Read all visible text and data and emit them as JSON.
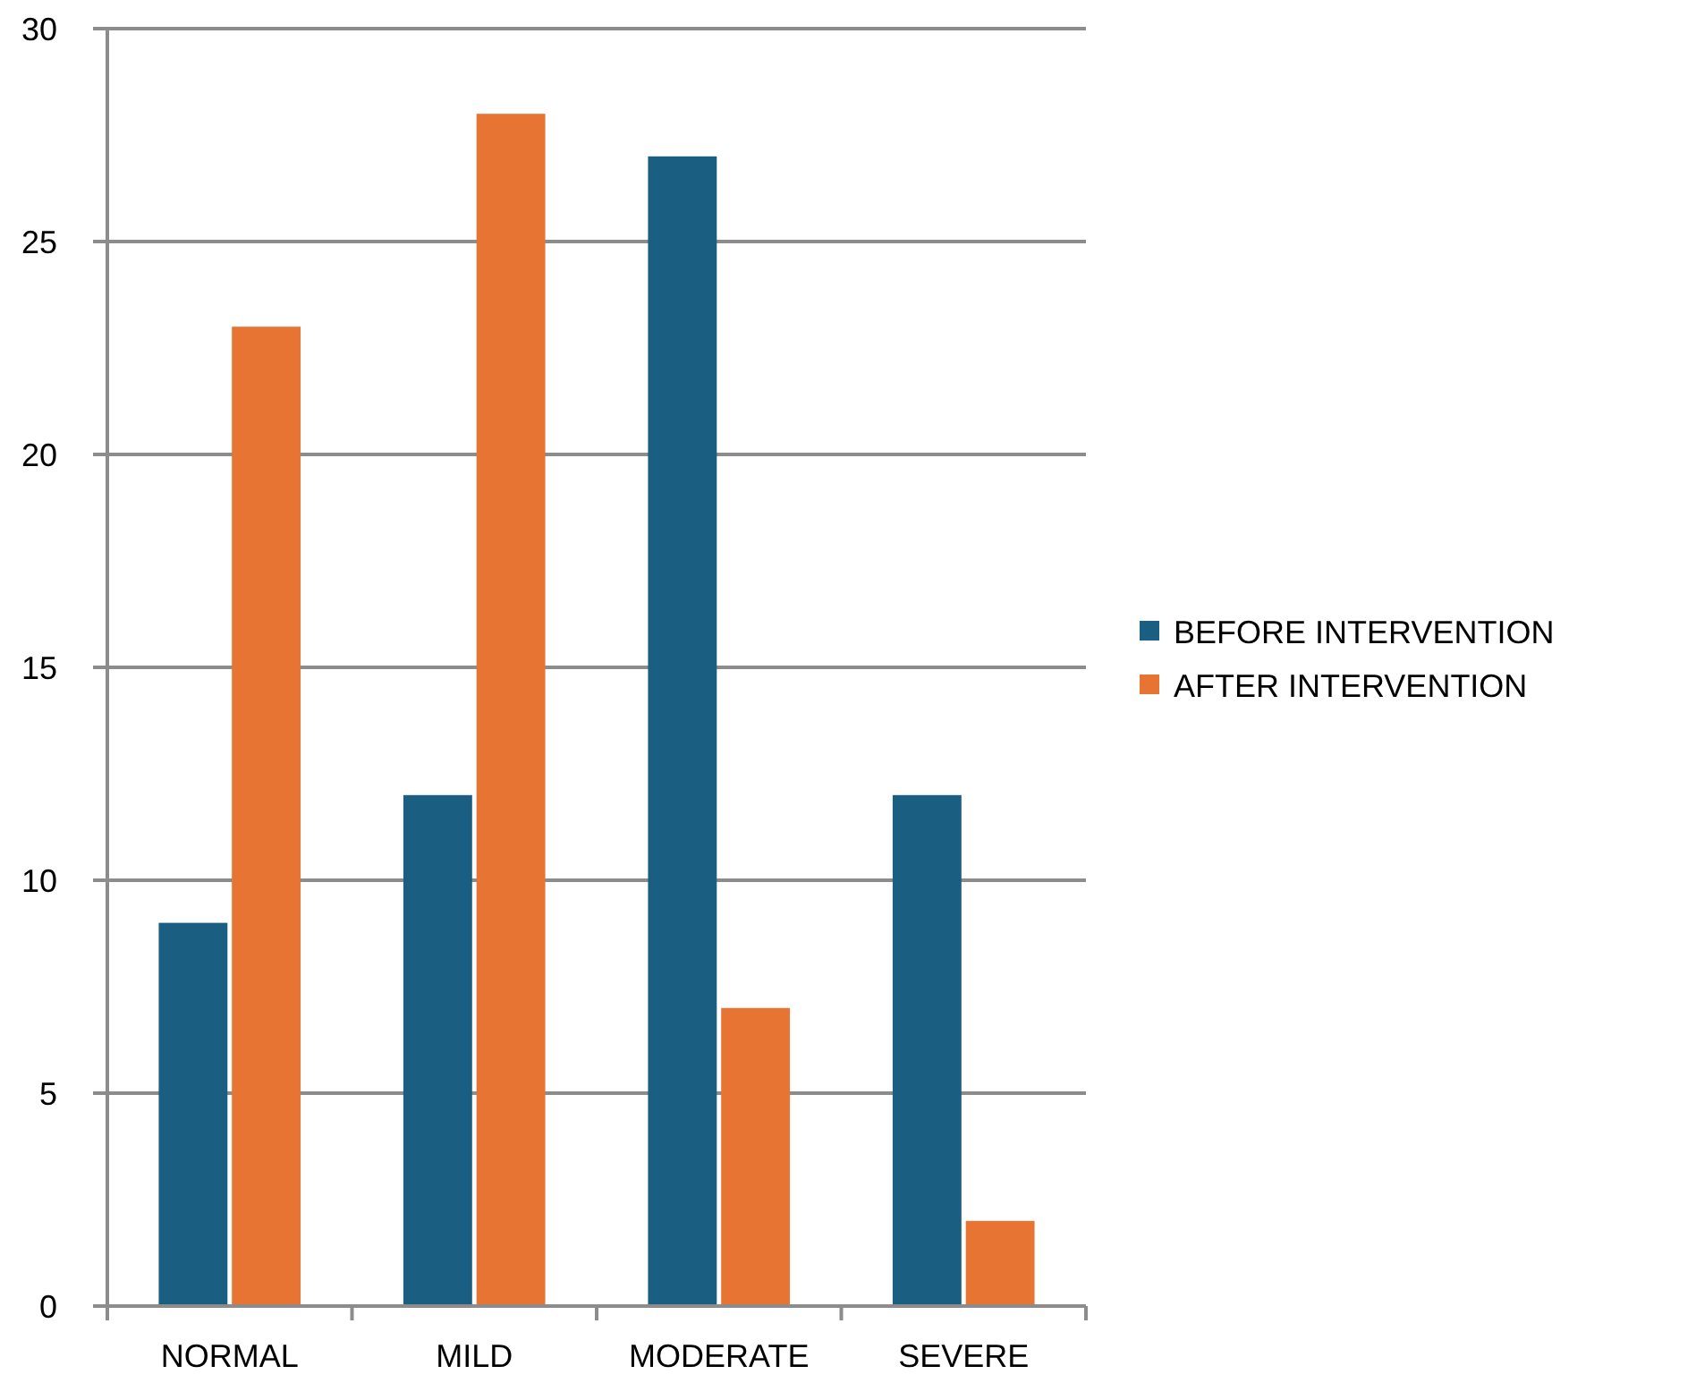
{
  "chart_data": {
    "type": "bar",
    "categories": [
      "NORMAL",
      "MILD",
      "MODERATE",
      "SEVERE"
    ],
    "series": [
      {
        "name": "BEFORE INTERVENTION",
        "color": "#1a5f82",
        "values": [
          9,
          12,
          27,
          12
        ]
      },
      {
        "name": "AFTER INTERVENTION",
        "color": "#e87434",
        "values": [
          23,
          28,
          7,
          2
        ]
      }
    ],
    "ylim": [
      0,
      30
    ],
    "yticks": [
      0,
      5,
      10,
      15,
      20,
      25,
      30
    ],
    "grid": "y",
    "legend": "right"
  }
}
